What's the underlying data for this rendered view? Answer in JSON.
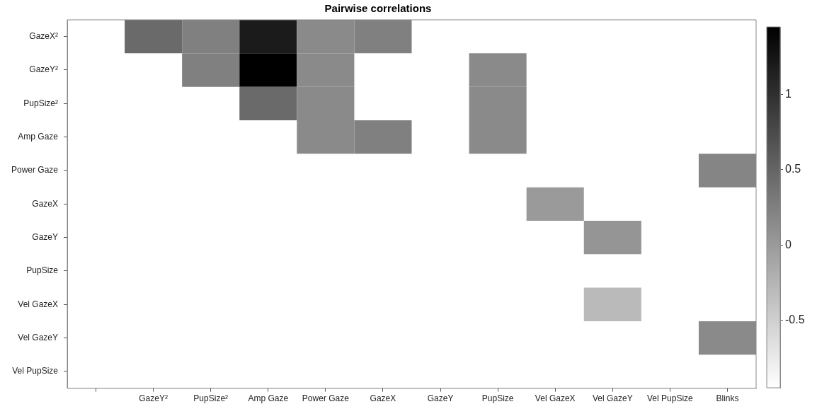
{
  "chart_data": {
    "type": "heatmap",
    "title": "Pairwise correlations",
    "categories": [
      null,
      "GazeY²",
      "PupSize²",
      "Amp Gaze",
      "Power Gaze",
      "GazeX",
      "GazeY",
      "PupSize",
      "Vel GazeX",
      "Vel GazeY",
      "Vel PupSize",
      "Blinks"
    ],
    "y_categories": [
      "GazeX²",
      "GazeY²",
      "PupSize²",
      "Amp Gaze",
      "Power Gaze",
      "GazeX",
      "GazeY",
      "PupSize",
      "Vel GazeX",
      "Vel GazeY",
      "Vel PupSize"
    ],
    "cells": [
      [
        null,
        0.45,
        0.25,
        1.2,
        0.15,
        0.25,
        null,
        null,
        null,
        null,
        null,
        null
      ],
      [
        null,
        null,
        0.25,
        1.45,
        0.15,
        null,
        null,
        0.15,
        null,
        null,
        null,
        null
      ],
      [
        null,
        null,
        null,
        0.45,
        0.15,
        null,
        null,
        0.15,
        null,
        null,
        null,
        null
      ],
      [
        null,
        null,
        null,
        null,
        0.15,
        0.25,
        null,
        0.15,
        null,
        null,
        null,
        null
      ],
      [
        null,
        null,
        null,
        null,
        null,
        null,
        null,
        null,
        null,
        null,
        null,
        0.2
      ],
      [
        null,
        null,
        null,
        null,
        null,
        null,
        null,
        null,
        0.0,
        null,
        null,
        null
      ],
      [
        null,
        null,
        null,
        null,
        null,
        null,
        null,
        null,
        null,
        0.05,
        null,
        null
      ],
      [
        null,
        null,
        null,
        null,
        null,
        null,
        null,
        null,
        null,
        null,
        null,
        null
      ],
      [
        null,
        null,
        null,
        null,
        null,
        null,
        null,
        null,
        null,
        -0.3,
        null,
        null
      ],
      [
        null,
        null,
        null,
        null,
        null,
        null,
        null,
        null,
        null,
        null,
        null,
        0.15
      ],
      [
        null,
        null,
        null,
        null,
        null,
        null,
        null,
        null,
        null,
        null,
        null,
        null
      ]
    ],
    "clim": [
      -0.95,
      1.45
    ],
    "cticks": [
      -0.5,
      0,
      0.5,
      1
    ]
  }
}
